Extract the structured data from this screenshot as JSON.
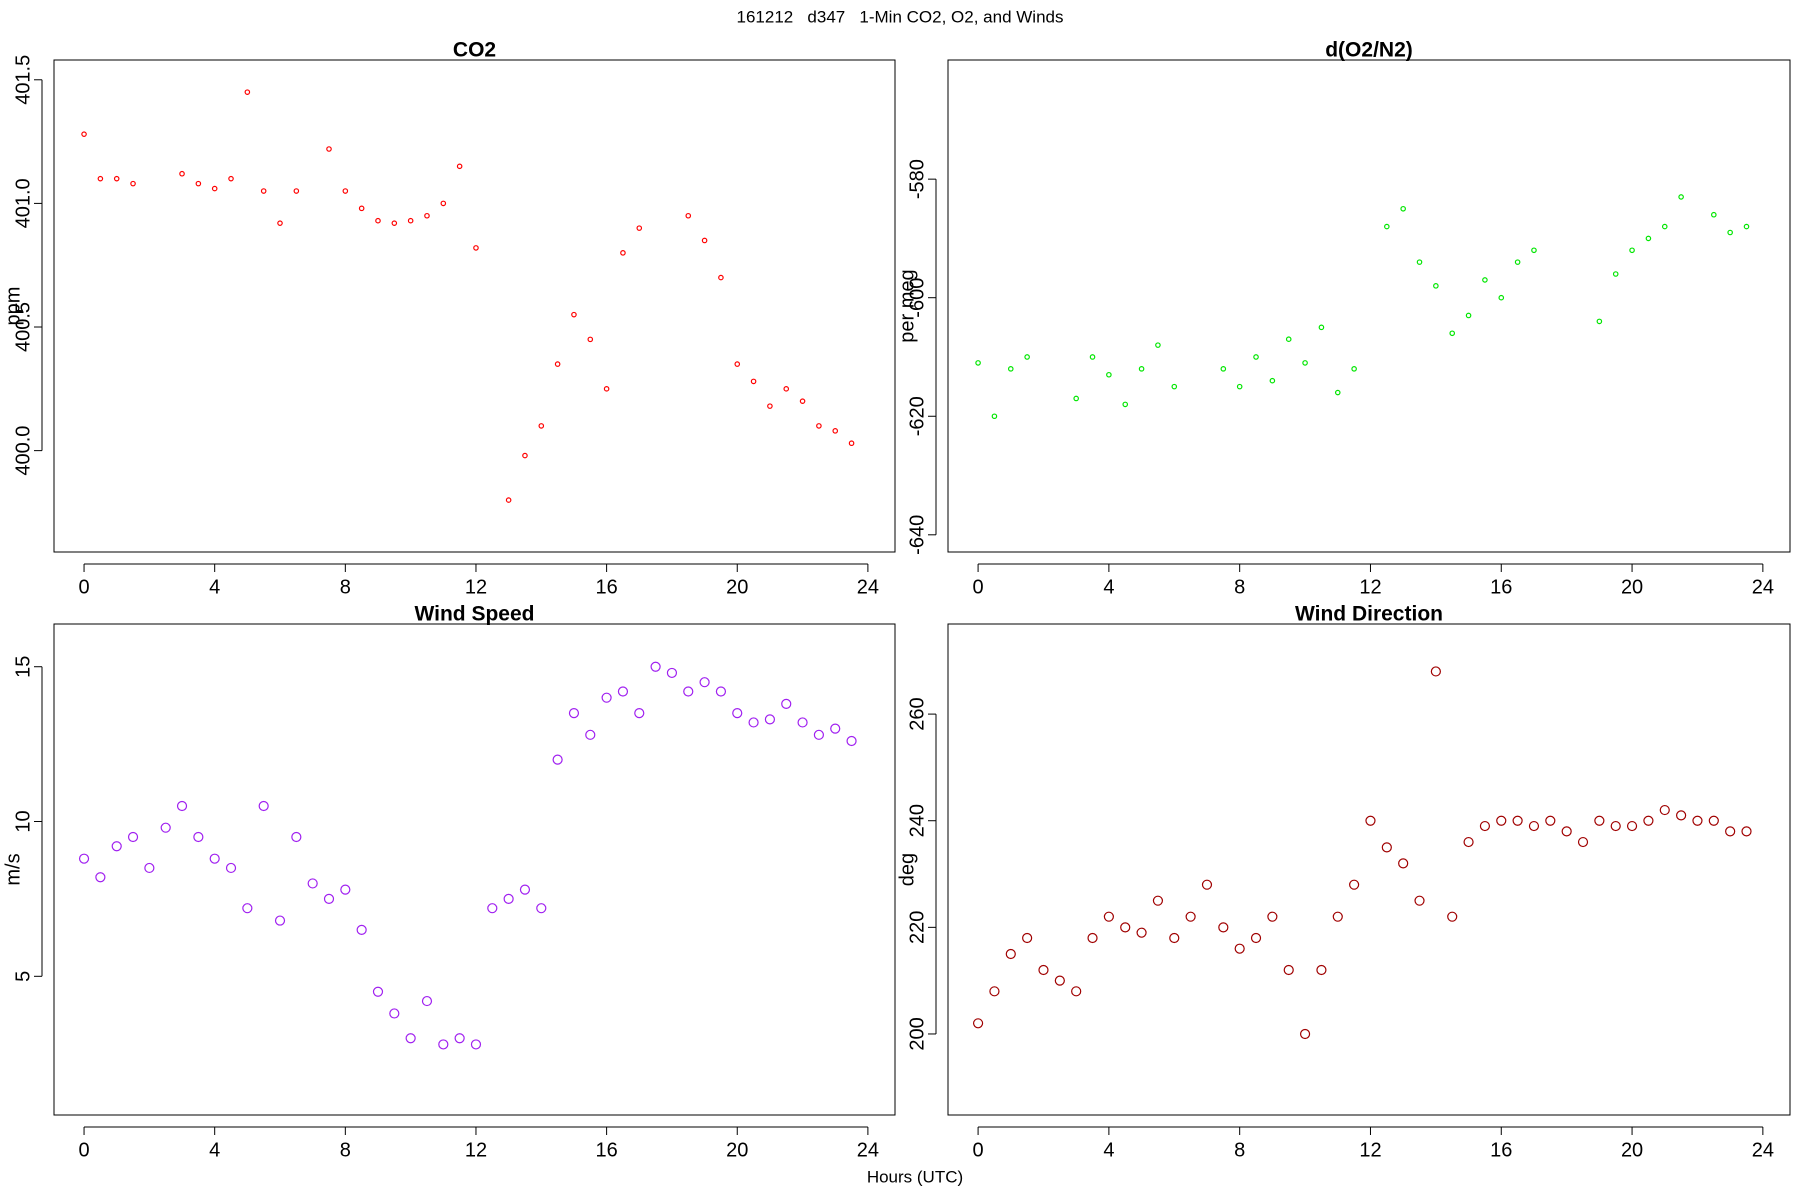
{
  "title": "161212   d347   1-Min CO2, O2, and Winds",
  "x_label": "Hours (UTC)",
  "chart_data": [
    {
      "type": "scatter",
      "title": "CO2",
      "ylabel": "ppm",
      "color": "#ff0000",
      "x": [
        0,
        0.5,
        1,
        1.5,
        2,
        2.5,
        3,
        3.5,
        4,
        4.5,
        5,
        5.5,
        6,
        6.5,
        7,
        7.5,
        8,
        8.5,
        9,
        9.5,
        10,
        10.5,
        11,
        11.5,
        12,
        12.5,
        13,
        13.5,
        14,
        14.5,
        15,
        15.5,
        16,
        16.5,
        17,
        17.5,
        18,
        18.5,
        19,
        19.5,
        20,
        20.5,
        21,
        21.5,
        22,
        22.5,
        23,
        23.5
      ],
      "values": [
        401.28,
        401.1,
        401.1,
        401.08,
        null,
        null,
        401.12,
        401.08,
        401.06,
        401.1,
        401.45,
        401.05,
        400.92,
        401.05,
        null,
        401.22,
        401.05,
        400.98,
        400.93,
        400.92,
        400.93,
        400.95,
        401.0,
        401.15,
        400.82,
        null,
        399.8,
        399.98,
        400.1,
        400.35,
        400.55,
        400.45,
        400.25,
        400.8,
        400.9,
        null,
        null,
        400.95,
        400.85,
        400.7,
        400.35,
        400.28,
        400.18,
        400.25,
        400.2,
        400.1,
        400.08,
        400.03
      ],
      "xlim": [
        -0.92,
        24.83
      ],
      "xticks": [
        0,
        4,
        8,
        12,
        16,
        20,
        24
      ],
      "ylim": [
        399.59,
        401.58
      ],
      "yticks": [
        {
          "value": 400,
          "label": "400.0"
        },
        400.5,
        {
          "value": 401,
          "label": "401.0"
        },
        401.5
      ]
    },
    {
      "type": "scatter",
      "title": "d(O2/N2)",
      "ylabel": "per meg",
      "color": "#00e600",
      "x": [
        0,
        0.5,
        1,
        1.5,
        2,
        2.5,
        3,
        3.5,
        4,
        4.5,
        5,
        5.5,
        6,
        6.5,
        7,
        7.5,
        8,
        8.5,
        9,
        9.5,
        10,
        10.5,
        11,
        11.5,
        12,
        12.5,
        13,
        13.5,
        14,
        14.5,
        15,
        15.5,
        16,
        16.5,
        17,
        17.5,
        18,
        18.5,
        19,
        19.5,
        20,
        20.5,
        21,
        21.5,
        22,
        22.5,
        23,
        23.5
      ],
      "values": [
        -611,
        -620,
        -612,
        -610,
        null,
        null,
        -617,
        -610,
        -613,
        -618,
        -612,
        -608,
        -615,
        null,
        null,
        -612,
        -615,
        -610,
        -614,
        -607,
        -611,
        -605,
        -616,
        -612,
        null,
        -588,
        -585,
        -594,
        -598,
        -606,
        -603,
        -597,
        -600,
        -594,
        -592,
        null,
        null,
        null,
        -604,
        -596,
        -592,
        -590,
        -588,
        -583,
        null,
        -586,
        -589,
        -588
      ],
      "xlim": [
        -0.92,
        24.83
      ],
      "xticks": [
        0,
        4,
        8,
        12,
        16,
        20,
        24
      ],
      "ylim": [
        -642.9,
        -559.9
      ],
      "yticks": [
        -640,
        -620,
        -600,
        -580
      ]
    },
    {
      "type": "scatter",
      "title": "Wind Speed",
      "ylabel": "m/s",
      "color": "#a020f0",
      "x": [
        0,
        0.5,
        1,
        1.5,
        2,
        2.5,
        3,
        3.5,
        4,
        4.5,
        5,
        5.5,
        6,
        6.5,
        7,
        7.5,
        8,
        8.5,
        9,
        9.5,
        10,
        10.5,
        11,
        11.5,
        12,
        12.5,
        13,
        13.5,
        14,
        14.5,
        15,
        15.5,
        16,
        16.5,
        17,
        17.5,
        18,
        18.5,
        19,
        19.5,
        20,
        20.5,
        21,
        21.5,
        22,
        22.5,
        23,
        23.5
      ],
      "values": [
        8.8,
        8.2,
        9.2,
        9.5,
        8.5,
        9.8,
        10.5,
        9.5,
        8.8,
        8.5,
        7.2,
        10.5,
        6.8,
        9.5,
        8.0,
        7.5,
        7.8,
        6.5,
        4.5,
        3.8,
        3.0,
        4.2,
        2.8,
        3.0,
        2.8,
        7.2,
        7.5,
        7.8,
        7.2,
        12.0,
        13.5,
        12.8,
        14.0,
        14.2,
        13.5,
        15.0,
        14.8,
        14.2,
        14.5,
        14.2,
        13.5,
        13.2,
        13.3,
        13.8,
        13.2,
        12.8,
        13.0,
        12.6
      ],
      "xlim": [
        -0.92,
        24.83
      ],
      "xticks": [
        0,
        4,
        8,
        12,
        16,
        20,
        24
      ],
      "ylim": [
        0.52,
        16.38
      ],
      "yticks": [
        5,
        10,
        15
      ]
    },
    {
      "type": "scatter",
      "title": "Wind Direction",
      "ylabel": "deg",
      "color": "#a00000",
      "x": [
        0,
        0.5,
        1,
        1.5,
        2,
        2.5,
        3,
        3.5,
        4,
        4.5,
        5,
        5.5,
        6,
        6.5,
        7,
        7.5,
        8,
        8.5,
        9,
        9.5,
        10,
        10.5,
        11,
        11.5,
        12,
        12.5,
        13,
        13.5,
        14,
        14.5,
        15,
        15.5,
        16,
        16.5,
        17,
        17.5,
        18,
        18.5,
        19,
        19.5,
        20,
        20.5,
        21,
        21.5,
        22,
        22.5,
        23,
        23.5
      ],
      "values": [
        202,
        208,
        215,
        218,
        212,
        210,
        208,
        218,
        222,
        220,
        219,
        225,
        218,
        222,
        228,
        220,
        216,
        218,
        222,
        212,
        200,
        212,
        222,
        228,
        240,
        235,
        232,
        225,
        268,
        222,
        236,
        239,
        240,
        240,
        239,
        240,
        238,
        236,
        240,
        239,
        239,
        240,
        242,
        241,
        240,
        240,
        238,
        238
      ],
      "xlim": [
        -0.92,
        24.83
      ],
      "xticks": [
        0,
        4,
        8,
        12,
        16,
        20,
        24
      ],
      "ylim": [
        184.8,
        276.9
      ],
      "yticks": [
        200,
        220,
        240,
        260
      ]
    }
  ]
}
